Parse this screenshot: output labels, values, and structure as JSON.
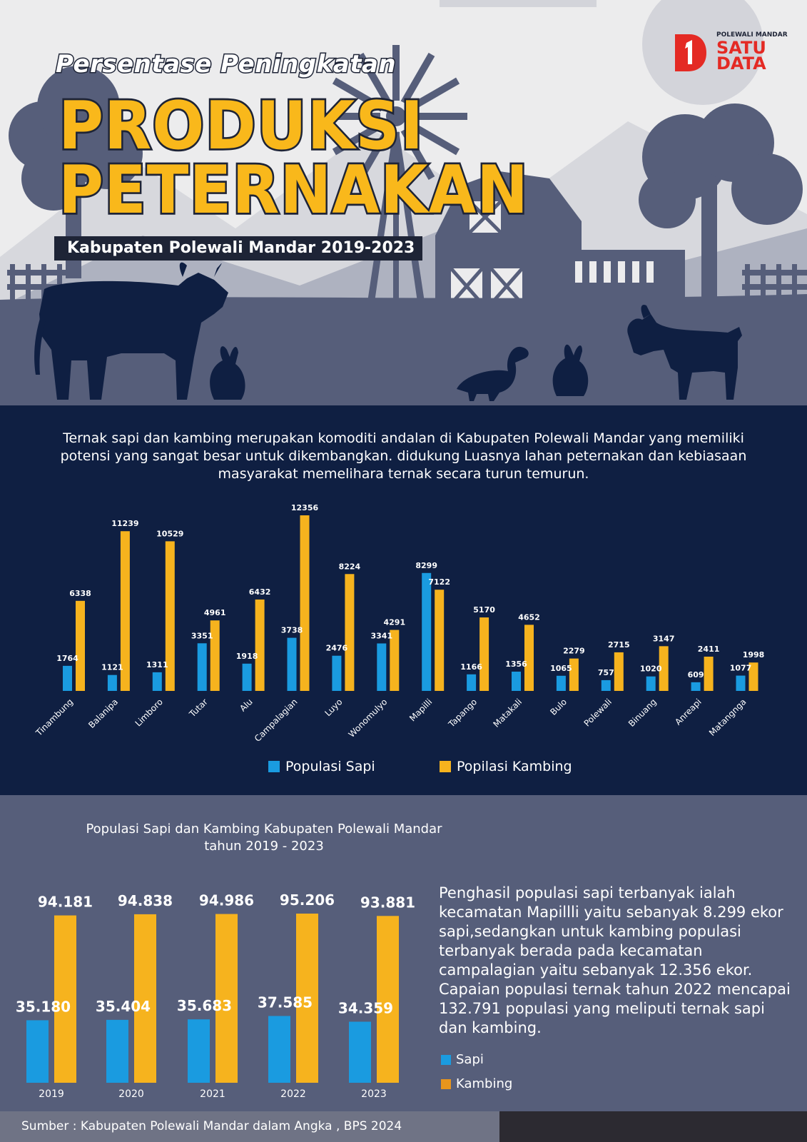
{
  "header": {
    "title_small": "Persentase Peningkatan",
    "title_line1": "PRODUKSI",
    "title_line2": "PETERNAKAN",
    "subtitle": "Kabupaten Polewali Mandar  2019-2023",
    "logo": {
      "top": "POLEWALI MANDAR",
      "word1": "SATU",
      "word2": "DATA"
    }
  },
  "intro": "Ternak sapi dan kambing merupakan komoditi andalan di Kabupaten Polewali Mandar yang memiliki potensi yang sangat besar untuk dikembangkan. didukung Luasnya lahan peternakan dan kebiasaan masyarakat memelihara ternak secara turun temurun.",
  "colors": {
    "sapi": "#1a9be0",
    "kambing": "#f6b31e",
    "dark_bg": "#0f1f42",
    "mid_bg": "#565e7a"
  },
  "chart_data": [
    {
      "type": "bar",
      "categories": [
        "Tinambung",
        "Balanipa",
        "Limboro",
        "Tutar",
        "Alu",
        "Campalagian",
        "Luyo",
        "Wonomulyo",
        "Mapilli",
        "Tapango",
        "Matakali",
        "Bulo",
        "Polewali",
        "Binuang",
        "Anreapi",
        "Matangnga"
      ],
      "series": [
        {
          "name": "Populasi Sapi",
          "values": [
            1764,
            1121,
            1311,
            3351,
            1918,
            3738,
            2476,
            3341,
            8299,
            1166,
            1356,
            1065,
            757,
            1020,
            609,
            1077
          ]
        },
        {
          "name": "Popilasi Kambing",
          "values": [
            6338,
            11239,
            10529,
            4961,
            6432,
            12356,
            8224,
            4291,
            7122,
            5170,
            4652,
            2279,
            2715,
            3147,
            2411,
            1998
          ]
        }
      ],
      "value_labels": {
        "sapi": [
          "1764",
          "1121",
          "1311",
          "3351",
          "1918",
          "3738",
          "2476",
          "3341",
          "8299",
          "1166",
          "1356",
          "1065",
          "757",
          "1020",
          "609",
          "1077"
        ],
        "kambing": [
          "6338",
          "11239",
          "10529",
          "4961",
          "6432",
          "12356",
          "8224",
          "4291",
          "7122",
          "5170",
          "4652",
          "2279",
          "2715",
          "3147",
          "2411",
          "1998"
        ]
      },
      "title": "",
      "xlabel": "",
      "ylabel": "",
      "legend": "bottom"
    },
    {
      "type": "bar",
      "title": "Populasi Sapi dan Kambing Kabupaten Polewali Mandar\ntahun 2019 - 2023",
      "categories": [
        "2019",
        "2020",
        "2021",
        "2022",
        "2023"
      ],
      "series": [
        {
          "name": "Sapi",
          "values": [
            35180,
            35404,
            35683,
            37585,
            34359
          ]
        },
        {
          "name": "Kambing",
          "values": [
            94181,
            94838,
            94986,
            95206,
            93881
          ]
        }
      ],
      "value_labels": {
        "sapi": [
          "35.180",
          "35.404",
          "35.683",
          "37.585",
          "34.359"
        ],
        "kambing": [
          "94.181",
          "94.838",
          "94.986",
          "95.206",
          "93.881"
        ]
      },
      "xlabel": "",
      "ylabel": "",
      "legend": "right"
    }
  ],
  "legend1": {
    "sapi": "Populasi Sapi",
    "kambing": "Popilasi Kambing"
  },
  "chart2_title": "Populasi Sapi dan Kambing Kabupaten Polewali Mandar\ntahun 2019 - 2023",
  "summary": "Penghasil populasi sapi terbanyak ialah kecamatan Mapillli yaitu sebanyak 8.299 ekor sapi,sedangkan untuk kambing populasi terbanyak berada pada kecamatan campalagian yaitu sebanyak 12.356 ekor. Capaian populasi ternak tahun 2022 mencapai 132.791 populasi yang meliputi ternak sapi dan kambing.",
  "legend2": {
    "sapi": "Sapi",
    "kambing": "Kambing",
    "kambing_color": "#e8951c"
  },
  "footer": {
    "source": "Sumber : Kabupaten Polewali Mandar dalam Angka , BPS 2024"
  }
}
